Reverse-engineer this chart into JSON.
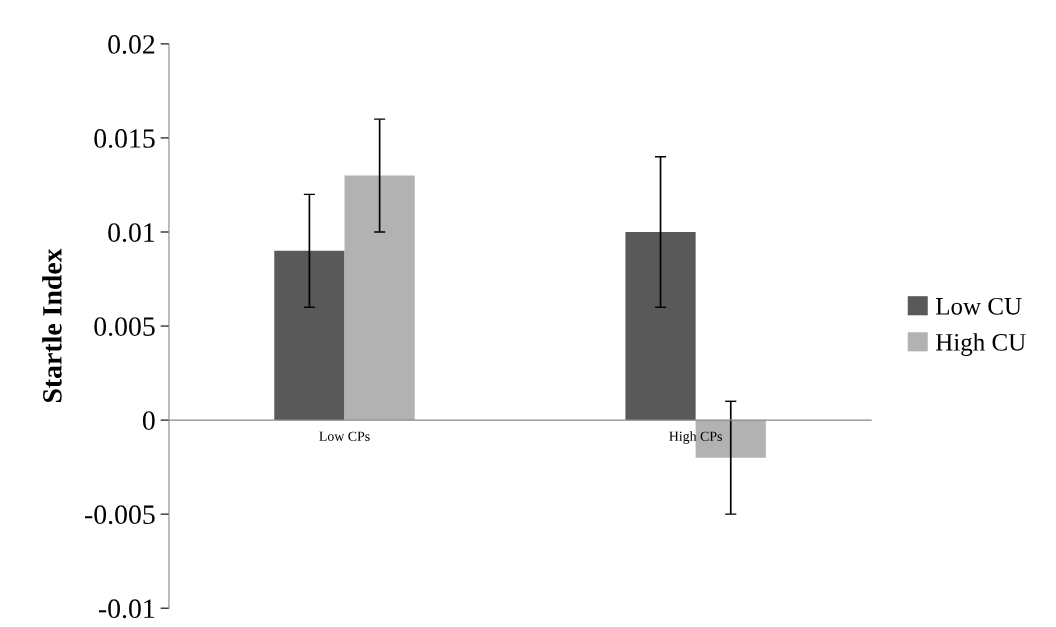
{
  "chart_data": {
    "type": "bar",
    "ylabel": "Startle Index",
    "categories": [
      "Low CPs",
      "High CPs"
    ],
    "series": [
      {
        "name": "Low CU",
        "color": "#595959",
        "values": [
          0.009,
          0.01
        ],
        "errors": [
          0.003,
          0.004
        ]
      },
      {
        "name": "High CU",
        "color": "#b2b2b2",
        "values": [
          0.013,
          -0.002
        ],
        "errors": [
          0.003,
          0.003
        ]
      }
    ],
    "ylim": [
      -0.01,
      0.02
    ],
    "yticks": [
      -0.01,
      -0.005,
      0,
      0.005,
      0.01,
      0.015,
      0.02
    ],
    "grid": false,
    "legend": "right"
  }
}
